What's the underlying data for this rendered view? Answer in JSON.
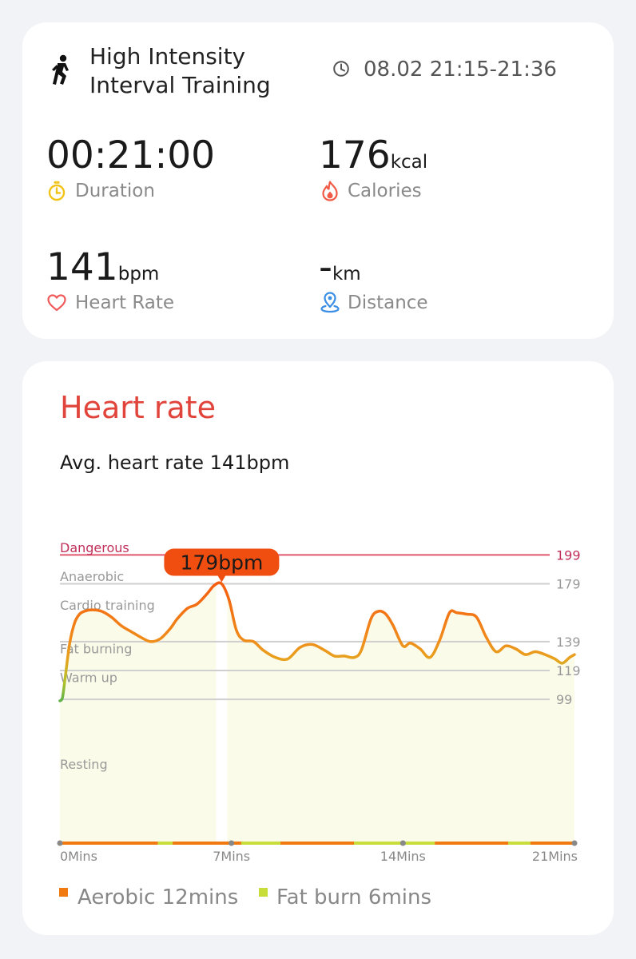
{
  "summary": {
    "workout_icon": "running-person-icon",
    "title_line1": "High Intensity",
    "title_line2": "Interval Training",
    "clock_icon": "clock-icon",
    "time_range": "08.02 21:15-21:36",
    "duration": {
      "value": "00:21:00",
      "label": "Duration",
      "icon": "stopwatch-icon",
      "color": "#f2c318"
    },
    "calories": {
      "value": "176",
      "unit": "kcal",
      "label": "Calories",
      "icon": "flame-icon",
      "color": "#f05a46"
    },
    "heart_rate": {
      "value": "141",
      "unit": "bpm",
      "label": "Heart Rate",
      "icon": "heart-icon",
      "color": "#f05a5a"
    },
    "distance": {
      "value": "-",
      "unit": "km",
      "label": "Distance",
      "icon": "location-pin-icon",
      "color": "#3a8ee6"
    }
  },
  "heart_rate_card": {
    "title": "Heart rate",
    "avg_text": "Avg. heart rate 141bpm",
    "legend": [
      {
        "label": "Aerobic 12mins",
        "color": "#f07a10"
      },
      {
        "label": "Fat burn 6mins",
        "color": "#c9dd3a"
      }
    ]
  },
  "chart_data": {
    "type": "line",
    "series_name": "",
    "x_unit": "Mins",
    "xlim": [
      0,
      21
    ],
    "x_ticks": [
      {
        "value": 0,
        "label": "0Mins"
      },
      {
        "value": 7,
        "label": "7Mins"
      },
      {
        "value": 14,
        "label": "14Mins"
      },
      {
        "value": 21,
        "label": "21Mins"
      }
    ],
    "y_reference_lines": [
      {
        "value": 199,
        "label": "199",
        "color": "#e0566d"
      },
      {
        "value": 179,
        "label": "179",
        "color": "#cfcfcf"
      },
      {
        "value": 139,
        "label": "139",
        "color": "#cfcfcf"
      },
      {
        "value": 119,
        "label": "119",
        "color": "#cfcfcf"
      },
      {
        "value": 99,
        "label": "99",
        "color": "#cfcfcf"
      }
    ],
    "zones": [
      {
        "name": "Dangerous",
        "value": 201,
        "color": "#c0305a"
      },
      {
        "name": "Anaerobic",
        "value": 181,
        "color": "#999999"
      },
      {
        "name": "Cardio training",
        "value": 161,
        "color": "#999999"
      },
      {
        "name": "Fat burning",
        "value": 131,
        "color": "#999999"
      },
      {
        "name": "Warm up",
        "value": 111,
        "color": "#999999"
      },
      {
        "name": "Resting",
        "value": 51,
        "color": "#999999"
      }
    ],
    "ylim": [
      0,
      205
    ],
    "peak": {
      "x": 6.6,
      "y": 179,
      "label": "179bpm"
    },
    "x": [
      0,
      0.1,
      0.2,
      0.4,
      0.6,
      0.8,
      1.0,
      1.3,
      1.7,
      2.1,
      2.5,
      2.9,
      3.3,
      3.7,
      4.1,
      4.5,
      4.8,
      5.2,
      5.6,
      6.0,
      6.3,
      6.6,
      6.9,
      7.2,
      7.5,
      7.9,
      8.3,
      8.8,
      9.3,
      9.8,
      10.3,
      10.8,
      11.2,
      11.6,
      12.0,
      12.3,
      12.7,
      13.0,
      13.3,
      13.6,
      14.0,
      14.3,
      14.7,
      15.1,
      15.5,
      15.9,
      16.2,
      16.6,
      17.0,
      17.4,
      17.8,
      18.2,
      18.6,
      19.0,
      19.4,
      19.8,
      20.2,
      20.5,
      20.8,
      21.0
    ],
    "y": [
      98,
      100,
      112,
      138,
      152,
      158,
      160,
      161,
      160,
      156,
      150,
      146,
      142,
      139,
      141,
      148,
      155,
      162,
      165,
      172,
      178,
      179,
      168,
      147,
      140,
      139,
      133,
      128,
      127,
      135,
      137,
      133,
      129,
      129,
      128,
      133,
      155,
      160,
      158,
      150,
      136,
      138,
      134,
      128,
      140,
      159,
      159,
      158,
      156,
      142,
      132,
      136,
      134,
      130,
      132,
      130,
      127,
      124,
      128,
      130
    ]
  }
}
